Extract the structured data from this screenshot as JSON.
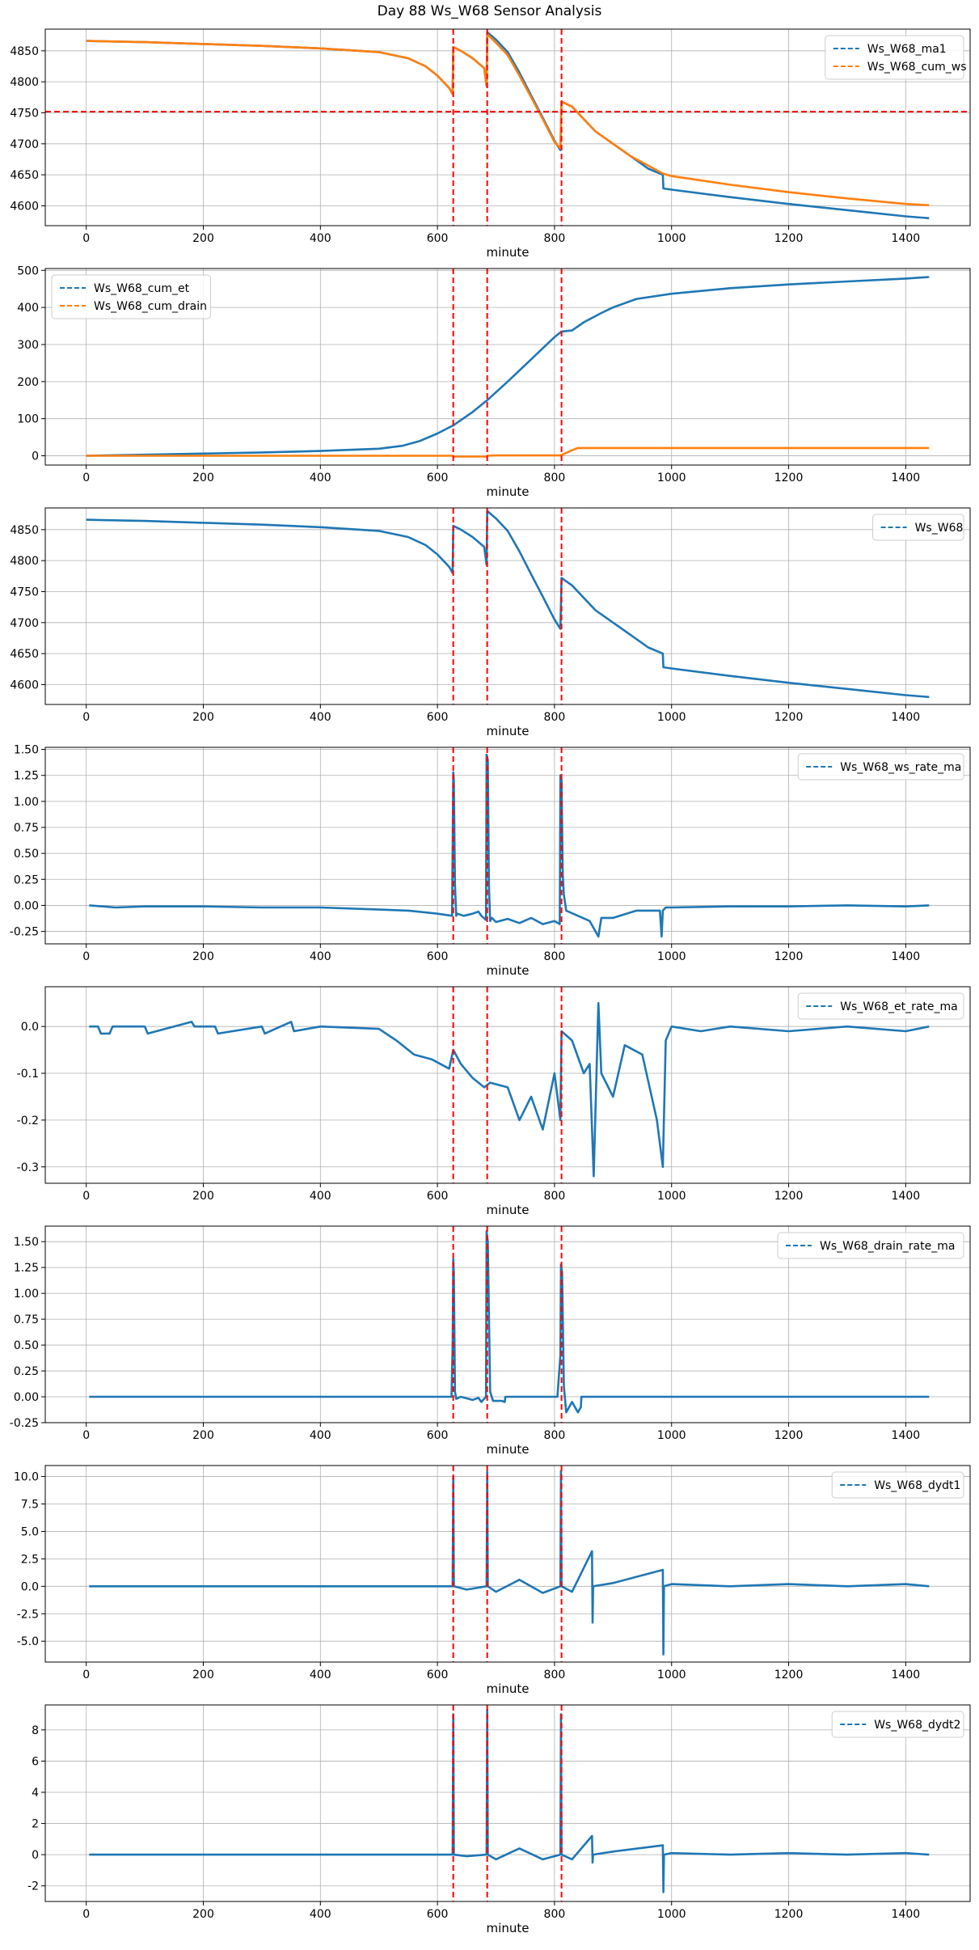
{
  "figure_title": "Day 88 Ws_W68 Sensor Analysis",
  "colors": {
    "blue": "#1f77b4",
    "orange": "#ff7f0e",
    "red": "#ff0000",
    "grid": "#b0b0b0"
  },
  "event_lines_minute": [
    627,
    685,
    812
  ],
  "chart_data": [
    {
      "type": "line",
      "xlabel": "minute",
      "legend_loc": "top-right",
      "xlim": [
        -70,
        1510
      ],
      "ylim": [
        4568,
        4885
      ],
      "xticks": [
        0,
        200,
        400,
        600,
        800,
        1000,
        1200,
        1400
      ],
      "yticks": [
        4600,
        4650,
        4700,
        4750,
        4800,
        4850
      ],
      "hline": 4752,
      "series": [
        {
          "name": "Ws_W68_ma1",
          "color": "#1f77b4",
          "x": [
            0,
            100,
            200,
            300,
            400,
            500,
            550,
            580,
            600,
            620,
            626,
            627,
            640,
            660,
            680,
            684,
            685,
            700,
            720,
            740,
            760,
            780,
            800,
            810,
            812,
            830,
            850,
            870,
            900,
            930,
            960,
            985,
            986,
            1000,
            1100,
            1200,
            1300,
            1400,
            1440
          ],
          "y": [
            4866,
            4864,
            4861,
            4858,
            4854,
            4848,
            4838,
            4825,
            4810,
            4790,
            4780,
            4856,
            4850,
            4838,
            4822,
            4793,
            4880,
            4868,
            4848,
            4815,
            4778,
            4742,
            4705,
            4690,
            4768,
            4760,
            4740,
            4720,
            4700,
            4680,
            4660,
            4650,
            4628,
            4626,
            4614,
            4603,
            4593,
            4583,
            4580
          ]
        },
        {
          "name": "Ws_W68_cum_ws",
          "color": "#ff7f0e",
          "x": [
            0,
            100,
            200,
            300,
            400,
            500,
            550,
            580,
            600,
            620,
            626,
            627,
            640,
            660,
            680,
            684,
            685,
            700,
            720,
            740,
            760,
            780,
            800,
            810,
            812,
            830,
            850,
            870,
            900,
            930,
            960,
            985,
            1000,
            1100,
            1200,
            1300,
            1400,
            1440
          ],
          "y": [
            4866,
            4864,
            4861,
            4858,
            4854,
            4848,
            4838,
            4825,
            4810,
            4790,
            4780,
            4856,
            4850,
            4838,
            4822,
            4793,
            4877,
            4863,
            4843,
            4810,
            4775,
            4740,
            4703,
            4693,
            4768,
            4760,
            4740,
            4720,
            4700,
            4680,
            4665,
            4652,
            4648,
            4634,
            4622,
            4612,
            4603,
            4601
          ]
        }
      ]
    },
    {
      "type": "line",
      "xlabel": "minute",
      "legend_loc": "top-left",
      "xlim": [
        -70,
        1510
      ],
      "ylim": [
        -25,
        505
      ],
      "xticks": [
        0,
        200,
        400,
        600,
        800,
        1000,
        1200,
        1400
      ],
      "yticks": [
        0,
        100,
        200,
        300,
        400,
        500
      ],
      "series": [
        {
          "name": "Ws_W68_cum_et",
          "color": "#1f77b4",
          "x": [
            0,
            100,
            200,
            300,
            400,
            500,
            540,
            570,
            600,
            627,
            660,
            685,
            720,
            760,
            800,
            812,
            830,
            850,
            880,
            900,
            940,
            1000,
            1100,
            1200,
            1300,
            1400,
            1440
          ],
          "y": [
            0,
            3,
            6,
            9,
            13,
            19,
            27,
            40,
            60,
            82,
            118,
            150,
            200,
            260,
            320,
            335,
            338,
            360,
            385,
            400,
            423,
            437,
            452,
            462,
            470,
            478,
            482
          ]
        },
        {
          "name": "Ws_W68_cum_drain",
          "color": "#ff7f0e",
          "x": [
            0,
            626,
            627,
            684,
            685,
            700,
            810,
            812,
            830,
            840,
            1440
          ],
          "y": [
            0,
            0,
            -2,
            -2,
            0,
            1,
            1,
            2,
            15,
            21,
            21
          ]
        }
      ]
    },
    {
      "type": "line",
      "xlabel": "minute",
      "legend_loc": "top-right",
      "xlim": [
        -70,
        1510
      ],
      "ylim": [
        4568,
        4885
      ],
      "xticks": [
        0,
        200,
        400,
        600,
        800,
        1000,
        1200,
        1400
      ],
      "yticks": [
        4600,
        4650,
        4700,
        4750,
        4800,
        4850
      ],
      "series": [
        {
          "name": "Ws_W68",
          "color": "#1f77b4",
          "x": [
            0,
            100,
            200,
            300,
            400,
            500,
            550,
            580,
            600,
            620,
            626,
            627,
            640,
            660,
            680,
            684,
            685,
            700,
            720,
            740,
            760,
            780,
            800,
            810,
            812,
            830,
            850,
            870,
            900,
            930,
            960,
            985,
            986,
            1000,
            1100,
            1200,
            1300,
            1400,
            1440
          ],
          "y": [
            4866,
            4864,
            4861,
            4858,
            4854,
            4848,
            4838,
            4825,
            4810,
            4790,
            4780,
            4856,
            4850,
            4838,
            4822,
            4793,
            4880,
            4868,
            4848,
            4815,
            4778,
            4742,
            4705,
            4690,
            4772,
            4760,
            4740,
            4720,
            4700,
            4680,
            4660,
            4650,
            4628,
            4626,
            4614,
            4603,
            4593,
            4583,
            4580
          ]
        }
      ]
    },
    {
      "type": "line",
      "xlabel": "minute",
      "legend_loc": "top-right",
      "xlim": [
        -70,
        1510
      ],
      "ylim": [
        -0.37,
        1.52
      ],
      "xticks": [
        0,
        200,
        400,
        600,
        800,
        1000,
        1200,
        1400
      ],
      "yticks": [
        -0.25,
        0.0,
        0.25,
        0.5,
        0.75,
        1.0,
        1.25,
        1.5
      ],
      "series": [
        {
          "name": "Ws_W68_ws_rate_ma",
          "color": "#1f77b4",
          "x": [
            5,
            50,
            100,
            200,
            300,
            400,
            500,
            550,
            600,
            625,
            627,
            628,
            630,
            632,
            634,
            645,
            660,
            670,
            675,
            683,
            684,
            686,
            688,
            690,
            693,
            700,
            720,
            740,
            760,
            780,
            800,
            809,
            810,
            812,
            814,
            816,
            820,
            840,
            860,
            875,
            880,
            900,
            940,
            980,
            983,
            985,
            990,
            1000,
            1100,
            1200,
            1300,
            1400,
            1440
          ],
          "y": [
            0,
            -0.02,
            -0.01,
            -0.01,
            -0.02,
            -0.02,
            -0.04,
            -0.05,
            -0.08,
            -0.1,
            1.28,
            1.2,
            0.2,
            -0.1,
            -0.08,
            -0.1,
            -0.08,
            -0.06,
            -0.1,
            -0.14,
            1.45,
            1.4,
            0.2,
            -0.15,
            -0.12,
            -0.16,
            -0.13,
            -0.17,
            -0.12,
            -0.18,
            -0.15,
            -0.18,
            1.25,
            1.2,
            0.3,
            0.1,
            -0.05,
            -0.1,
            -0.15,
            -0.3,
            -0.12,
            -0.12,
            -0.05,
            -0.05,
            -0.3,
            -0.05,
            -0.02,
            -0.02,
            -0.01,
            -0.01,
            0,
            -0.01,
            0
          ]
        }
      ]
    },
    {
      "type": "line",
      "xlabel": "minute",
      "legend_loc": "top-right",
      "xlim": [
        -70,
        1510
      ],
      "ylim": [
        -0.335,
        0.085
      ],
      "xticks": [
        0,
        200,
        400,
        600,
        800,
        1000,
        1200,
        1400
      ],
      "yticks": [
        -0.3,
        -0.2,
        -0.1,
        0.0
      ],
      "series": [
        {
          "name": "Ws_W68_et_rate_ma",
          "color": "#1f77b4",
          "x": [
            5,
            20,
            25,
            40,
            45,
            100,
            105,
            180,
            185,
            220,
            225,
            300,
            305,
            350,
            355,
            400,
            500,
            530,
            560,
            590,
            620,
            627,
            640,
            660,
            680,
            690,
            720,
            740,
            760,
            780,
            800,
            810,
            812,
            830,
            850,
            860,
            867,
            875,
            880,
            900,
            920,
            950,
            975,
            985,
            990,
            1000,
            1050,
            1100,
            1200,
            1300,
            1400,
            1440
          ],
          "y": [
            0,
            0,
            -0.015,
            -0.015,
            0,
            0,
            -0.015,
            0.01,
            0,
            0,
            -0.015,
            0,
            -0.015,
            0.01,
            -0.01,
            0,
            -0.005,
            -0.03,
            -0.06,
            -0.07,
            -0.09,
            -0.05,
            -0.08,
            -0.11,
            -0.13,
            -0.12,
            -0.13,
            -0.2,
            -0.15,
            -0.22,
            -0.1,
            -0.2,
            -0.01,
            -0.03,
            -0.1,
            -0.08,
            -0.32,
            0.05,
            -0.1,
            -0.15,
            -0.04,
            -0.06,
            -0.2,
            -0.3,
            -0.03,
            0,
            -0.01,
            0,
            -0.01,
            0,
            -0.01,
            0
          ]
        }
      ]
    },
    {
      "type": "line",
      "xlabel": "minute",
      "legend_loc": "top-right",
      "xlim": [
        -70,
        1510
      ],
      "ylim": [
        -0.25,
        1.65
      ],
      "xticks": [
        0,
        200,
        400,
        600,
        800,
        1000,
        1200,
        1400
      ],
      "yticks": [
        -0.25,
        0.0,
        0.25,
        0.5,
        0.75,
        1.0,
        1.25,
        1.5
      ],
      "series": [
        {
          "name": "Ws_W68_drain_rate_ma",
          "color": "#1f77b4",
          "x": [
            5,
            624,
            626,
            627,
            628,
            630,
            632,
            640,
            660,
            670,
            675,
            683,
            684,
            686,
            690,
            695,
            700,
            710,
            715,
            716,
            805,
            810,
            811,
            813,
            816,
            820,
            830,
            840,
            845,
            846,
            1440
          ],
          "y": [
            0,
            0,
            0.5,
            1.33,
            1.2,
            0.05,
            -0.02,
            0,
            -0.03,
            -0.01,
            -0.05,
            0,
            1.6,
            1.5,
            0.05,
            -0.04,
            -0.04,
            -0.04,
            -0.05,
            0,
            0,
            0.4,
            1.28,
            1.2,
            0.1,
            -0.15,
            -0.05,
            -0.15,
            -0.1,
            0,
            0
          ]
        }
      ]
    },
    {
      "type": "line",
      "xlabel": "minute",
      "legend_loc": "top-right",
      "xlim": [
        -70,
        1510
      ],
      "ylim": [
        -6.9,
        11.0
      ],
      "xticks": [
        0,
        200,
        400,
        600,
        800,
        1000,
        1200,
        1400
      ],
      "yticks": [
        -5.0,
        -2.5,
        0.0,
        2.5,
        5.0,
        7.5,
        10.0
      ],
      "series": [
        {
          "name": "Ws_W68_dydt1",
          "color": "#1f77b4",
          "x": [
            5,
            100,
            200,
            300,
            400,
            500,
            600,
            626,
            627,
            628,
            650,
            684,
            685,
            686,
            700,
            740,
            780,
            810,
            811,
            812,
            830,
            864,
            865,
            866,
            900,
            985,
            986,
            987,
            1000,
            1100,
            1200,
            1300,
            1400,
            1440
          ],
          "y": [
            0,
            0,
            0,
            0,
            0,
            0,
            0,
            0,
            10.0,
            0,
            -0.3,
            0,
            10.4,
            0,
            -0.5,
            0.6,
            -0.6,
            0,
            10.5,
            0,
            -0.5,
            3.2,
            -3.3,
            0,
            0.3,
            1.5,
            -6.2,
            0,
            0.2,
            0,
            0.2,
            0,
            0.2,
            0
          ]
        }
      ]
    },
    {
      "type": "line",
      "xlabel": "minute",
      "legend_loc": "top-right",
      "xlim": [
        -70,
        1510
      ],
      "ylim": [
        -3.0,
        9.6
      ],
      "xticks": [
        0,
        200,
        400,
        600,
        800,
        1000,
        1200,
        1400
      ],
      "yticks": [
        -2,
        0,
        2,
        4,
        6,
        8
      ],
      "series": [
        {
          "name": "Ws_W68_dydt2",
          "color": "#1f77b4",
          "x": [
            5,
            100,
            200,
            300,
            400,
            500,
            600,
            626,
            627,
            628,
            650,
            684,
            685,
            686,
            700,
            740,
            780,
            810,
            811,
            812,
            830,
            864,
            865,
            866,
            900,
            985,
            986,
            987,
            1000,
            1100,
            1200,
            1300,
            1400,
            1440
          ],
          "y": [
            0,
            0,
            0,
            0,
            0,
            0,
            0,
            0,
            9.0,
            0,
            -0.1,
            0,
            9.3,
            0,
            -0.3,
            0.4,
            -0.3,
            0,
            9.0,
            0,
            -0.3,
            1.2,
            -0.5,
            0,
            0.2,
            0.6,
            -2.4,
            0,
            0.1,
            0,
            0.1,
            0,
            0.1,
            0
          ]
        }
      ]
    }
  ]
}
